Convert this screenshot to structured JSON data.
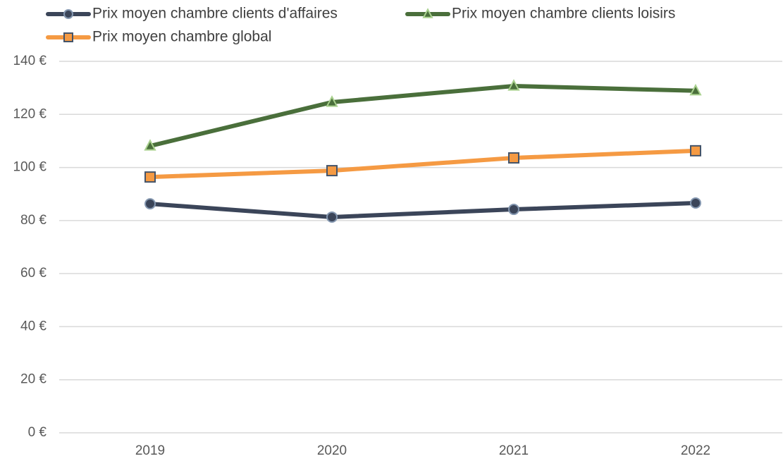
{
  "chart_data": {
    "type": "line",
    "categories": [
      "2019",
      "2020",
      "2021",
      "2022"
    ],
    "series": [
      {
        "name": "Prix moyen chambre clients d'affaires",
        "color": "#3b4559",
        "marker": "circle",
        "marker_edge": "#8497b0",
        "values": [
          86.3,
          81.3,
          84.2,
          86.6
        ]
      },
      {
        "name": "Prix moyen chambre clients loisirs",
        "color": "#4a6f3b",
        "marker": "triangle",
        "marker_edge": "#a9d18e",
        "values": [
          108.1,
          124.6,
          130.7,
          128.9
        ]
      },
      {
        "name": "Prix moyen chambre global",
        "color": "#f59a43",
        "marker": "square",
        "marker_edge": "#44546a",
        "values": [
          96.4,
          98.8,
          103.6,
          106.3
        ]
      }
    ],
    "ylim": [
      0,
      140
    ],
    "yticks": [
      {
        "value": 0,
        "label": "0 €"
      },
      {
        "value": 20,
        "label": "20 €"
      },
      {
        "value": 40,
        "label": "40 €"
      },
      {
        "value": 60,
        "label": "60 €"
      },
      {
        "value": 80,
        "label": "80 €"
      },
      {
        "value": 100,
        "label": "100 €"
      },
      {
        "value": 120,
        "label": "120 €"
      },
      {
        "value": 140,
        "label": "140 €"
      }
    ],
    "grid": true,
    "legend": "top"
  }
}
